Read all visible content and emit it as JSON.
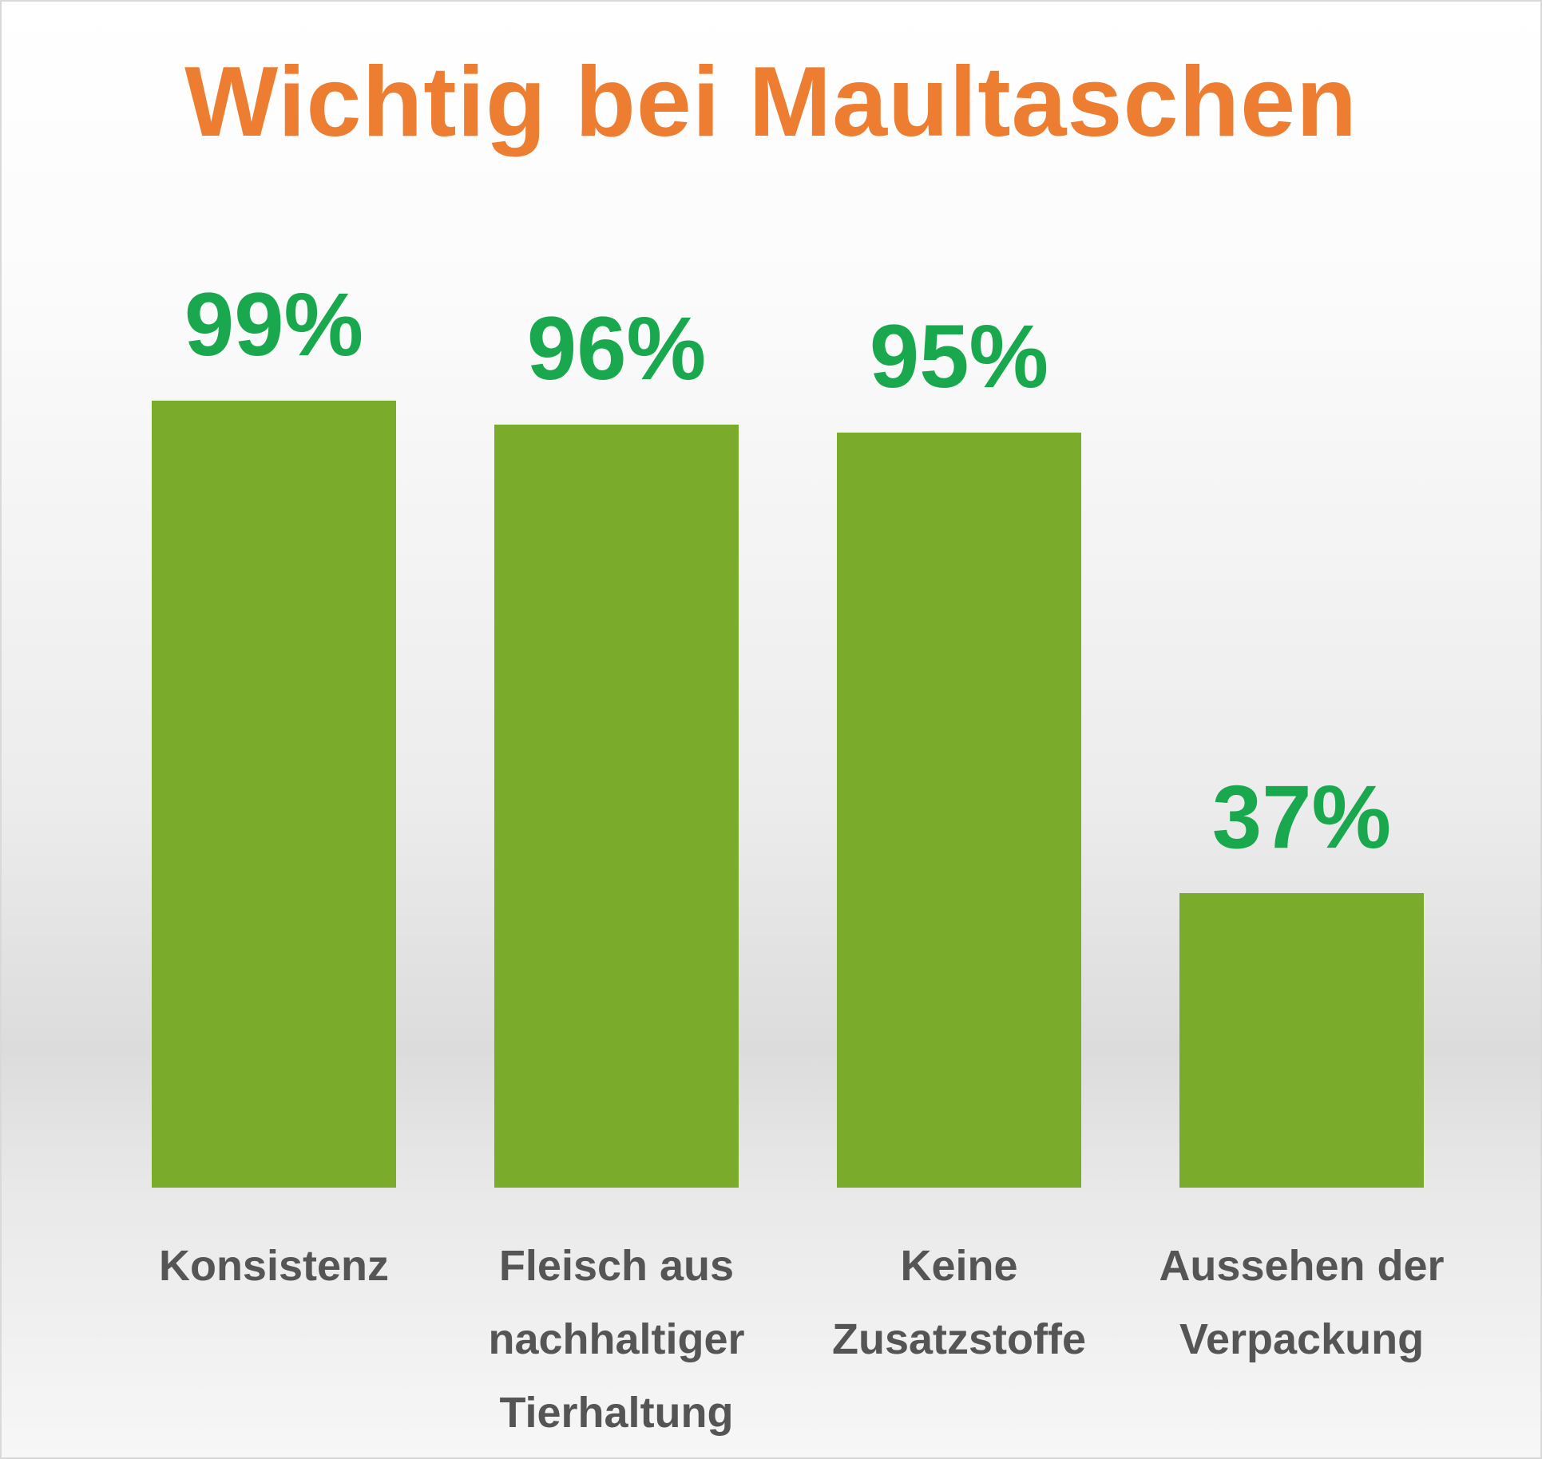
{
  "chart_data": {
    "type": "bar",
    "title": "Wichtig bei Maultaschen",
    "categories": [
      "Konsistenz",
      "Fleisch aus nachhaltiger Tierhaltung",
      "Keine Zusatzstoffe",
      "Aussehen der Verpackung"
    ],
    "values": [
      99,
      96,
      95,
      37
    ],
    "value_labels": [
      "99%",
      "96%",
      "95%",
      "37%"
    ],
    "color": "#7aab2a"
  }
}
